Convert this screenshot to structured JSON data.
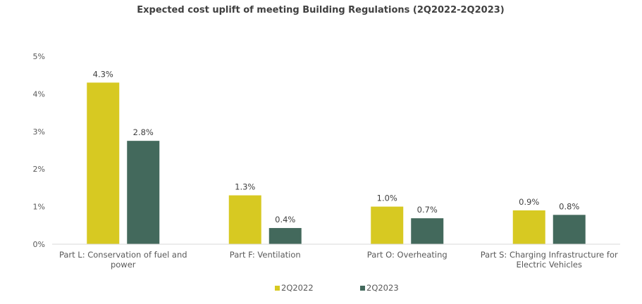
{
  "chart_data": {
    "type": "bar",
    "title": "Expected cost uplift of meeting Building Regulations (2Q2022-2Q2023)",
    "categories": [
      [
        "Part L: Conservation of fuel and",
        "power"
      ],
      [
        "Part F: Ventilation"
      ],
      [
        "Part O: Overheating"
      ],
      [
        "Part S: Charging Infrastructure for",
        "Electric Vehicles"
      ]
    ],
    "series": [
      {
        "name": "2Q2022",
        "color": "#d7c922",
        "values": [
          4.3,
          1.3,
          1.0,
          0.9
        ],
        "labels": [
          "4.3%",
          "1.3%",
          "1.0%",
          "0.9%"
        ]
      },
      {
        "name": "2Q2023",
        "color": "#43695c",
        "values": [
          2.75,
          0.43,
          0.69,
          0.78
        ],
        "labels": [
          "2.8%",
          "0.4%",
          "0.7%",
          "0.8%"
        ]
      }
    ],
    "ylim": [
      0,
      5
    ],
    "yticks": [
      0,
      1,
      2,
      3,
      4,
      5
    ],
    "ytick_labels": [
      "0%",
      "1%",
      "2%",
      "3%",
      "4%",
      "5%"
    ],
    "xlabel": "",
    "ylabel": "",
    "grid": false,
    "legend_position": "bottom"
  }
}
